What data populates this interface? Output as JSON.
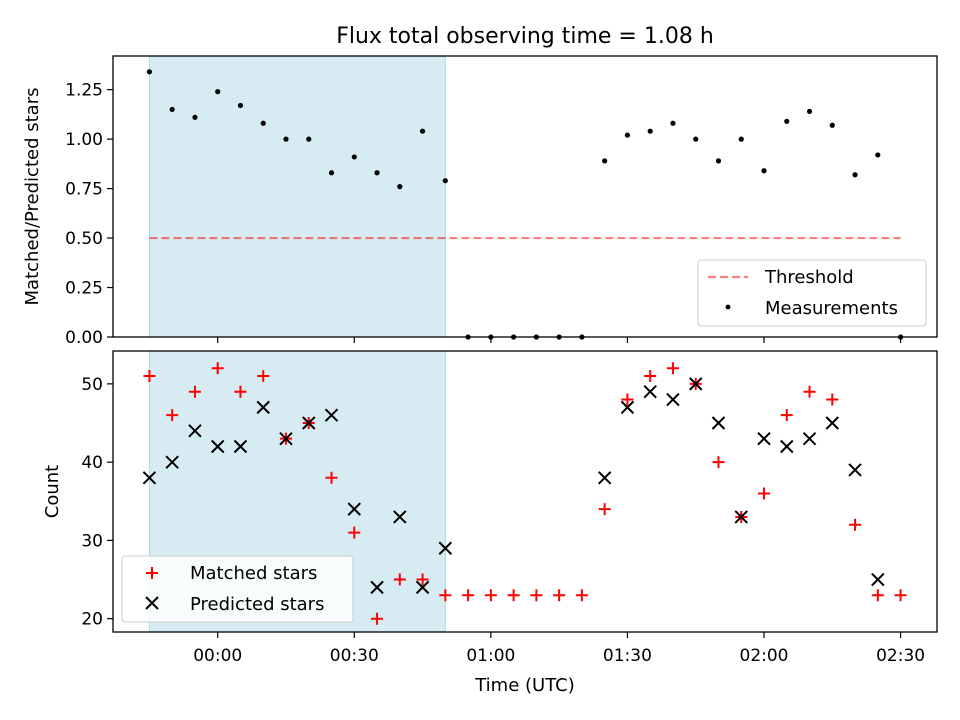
{
  "title": "Flux total observing time = 1.08 h",
  "colors": {
    "shade": "#add8e6",
    "threshold": "#ff0000",
    "measurement": "#000000",
    "matched": "#ff0000",
    "predicted": "#000000"
  },
  "chart_data": [
    {
      "type": "scatter",
      "ylabel": "Matched/Predicted stars",
      "ylim": [
        0.0,
        1.42
      ],
      "yticks": [
        0.0,
        0.25,
        0.5,
        0.75,
        1.0,
        1.25
      ],
      "ytick_labels": [
        "0.00",
        "0.25",
        "0.50",
        "0.75",
        "1.00",
        "1.25"
      ],
      "shaded_span_minutes": [
        -15,
        50
      ],
      "legend_position": "lower-right",
      "series": [
        {
          "name": "Threshold",
          "style": "dashed-line",
          "x": [
            -15,
            150
          ],
          "y": [
            0.5,
            0.5
          ]
        },
        {
          "name": "Measurements",
          "style": "dot",
          "x": [
            -15,
            -10,
            -5,
            0,
            5,
            10,
            15,
            20,
            25,
            30,
            35,
            40,
            45,
            50,
            55,
            60,
            65,
            70,
            75,
            80,
            85,
            90,
            95,
            100,
            105,
            110,
            115,
            120,
            125,
            130,
            135,
            140,
            145,
            150
          ],
          "y": [
            1.34,
            1.15,
            1.11,
            1.24,
            1.17,
            1.08,
            1.0,
            1.0,
            0.83,
            0.91,
            0.83,
            0.76,
            1.04,
            0.79,
            0.0,
            0.0,
            0.0,
            0.0,
            0.0,
            0.0,
            0.89,
            1.02,
            1.04,
            1.08,
            1.0,
            0.89,
            1.0,
            0.84,
            1.09,
            1.14,
            1.07,
            0.82,
            0.92,
            0.0
          ]
        }
      ]
    },
    {
      "type": "scatter",
      "xlabel": "Time (UTC)",
      "ylabel": "Count",
      "ylim": [
        18.3,
        54.2
      ],
      "yticks": [
        20,
        30,
        40,
        50
      ],
      "ytick_labels": [
        "20",
        "30",
        "40",
        "50"
      ],
      "xlim_minutes": [
        -23,
        158
      ],
      "xticks_minutes": [
        0,
        30,
        60,
        90,
        120,
        150
      ],
      "xtick_labels": [
        "00:00",
        "00:30",
        "01:00",
        "01:30",
        "02:00",
        "02:30"
      ],
      "shaded_span_minutes": [
        -15,
        50
      ],
      "legend_position": "lower-left",
      "series": [
        {
          "name": "Matched stars",
          "marker": "plus",
          "x": [
            -15,
            -10,
            -5,
            0,
            5,
            10,
            15,
            20,
            25,
            30,
            35,
            40,
            45,
            50,
            55,
            60,
            65,
            70,
            75,
            80,
            85,
            90,
            95,
            100,
            105,
            110,
            115,
            120,
            125,
            130,
            135,
            140,
            145,
            150
          ],
          "y": [
            51,
            46,
            49,
            52,
            49,
            51,
            43,
            45,
            38,
            31,
            20,
            25,
            25,
            23,
            23,
            23,
            23,
            23,
            23,
            23,
            34,
            48,
            51,
            52,
            50,
            40,
            33,
            36,
            46,
            49,
            48,
            32,
            23,
            23
          ]
        },
        {
          "name": "Predicted stars",
          "marker": "x",
          "x": [
            -15,
            -10,
            -5,
            0,
            5,
            10,
            15,
            20,
            25,
            30,
            35,
            40,
            45,
            50,
            85,
            90,
            95,
            100,
            105,
            110,
            115,
            120,
            125,
            130,
            135,
            140,
            145
          ],
          "y": [
            38,
            40,
            44,
            42,
            42,
            47,
            43,
            45,
            46,
            34,
            24,
            33,
            24,
            29,
            38,
            47,
            49,
            48,
            50,
            45,
            33,
            43,
            42,
            43,
            45,
            39,
            25
          ]
        }
      ]
    }
  ]
}
